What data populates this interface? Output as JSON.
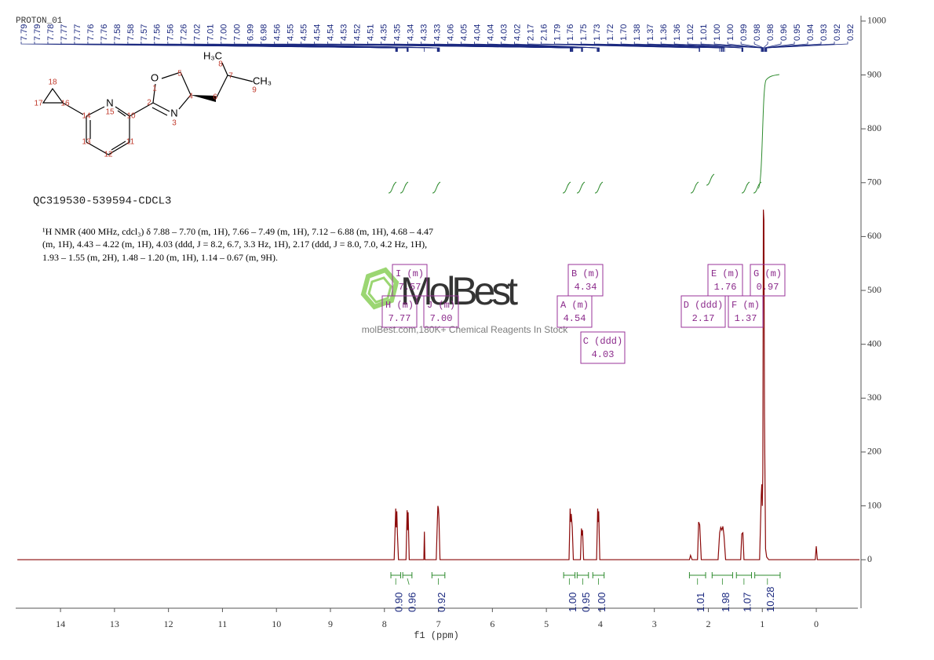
{
  "chart_data": {
    "type": "line",
    "title": "PROTON_01",
    "sample": "QC319530-539594-CDCL3",
    "nmr_text": [
      "¹H NMR (400 MHz, cdcl₃) δ 7.88 – 7.70 (m, 1H), 7.66 – 7.49 (m, 1H), 7.12 – 6.88 (m, 1H), 4.68 – 4.47",
      "(m, 1H), 4.43 – 4.22 (m, 1H), 4.03 (ddd, J = 8.2, 6.7, 3.3 Hz, 1H), 2.17 (ddd, J = 8.0, 7.0, 4.2 Hz, 1H),",
      "1.93 – 1.55 (m, 2H), 1.48 – 1.20 (m, 1H), 1.14 – 0.67 (m, 9H)."
    ],
    "xlabel": "f1 (ppm)",
    "color": "#8b0a0a",
    "x": [
      14.8,
      7.82,
      7.79,
      7.78,
      7.77,
      7.76,
      7.74,
      7.6,
      7.58,
      7.57,
      7.56,
      7.54,
      7.27,
      7.26,
      7.25,
      7.04,
      7.02,
      7.01,
      7.0,
      6.99,
      6.97,
      4.58,
      4.56,
      4.55,
      4.54,
      4.52,
      4.5,
      4.37,
      4.35,
      4.34,
      4.33,
      4.31,
      4.07,
      4.05,
      4.04,
      4.03,
      4.01,
      2.35,
      2.33,
      2.3,
      2.2,
      2.18,
      2.16,
      2.13,
      1.82,
      1.79,
      1.77,
      1.75,
      1.73,
      1.71,
      1.68,
      1.4,
      1.38,
      1.36,
      1.34,
      1.05,
      1.02,
      1.01,
      1.0,
      0.99,
      0.98,
      0.97,
      0.96,
      0.94,
      0.92,
      0.88,
      0.02,
      0.0,
      -0.02,
      -0.8
    ],
    "values": [
      0,
      0,
      95,
      60,
      90,
      50,
      0,
      0,
      92,
      55,
      88,
      0,
      0,
      52,
      0,
      0,
      70,
      100,
      95,
      75,
      0,
      0,
      95,
      70,
      85,
      60,
      0,
      0,
      58,
      45,
      55,
      0,
      0,
      95,
      70,
      90,
      0,
      0,
      8,
      0,
      0,
      70,
      65,
      0,
      0,
      50,
      60,
      55,
      62,
      45,
      0,
      0,
      48,
      50,
      0,
      0,
      120,
      140,
      100,
      160,
      650,
      630,
      270,
      20,
      5,
      0,
      0,
      25,
      0,
      0
    ],
    "xlim": [
      14.83,
      -0.77
    ],
    "xticks": [
      14,
      13,
      12,
      11,
      10,
      9,
      8,
      7,
      6,
      5,
      4,
      3,
      2,
      1,
      0
    ],
    "ylim": [
      -90,
      1010
    ],
    "yticks": [
      0,
      100,
      200,
      300,
      400,
      500,
      600,
      700,
      800,
      900,
      1000
    ],
    "peak_labels": [
      7.79,
      7.79,
      7.78,
      7.77,
      7.77,
      7.76,
      7.76,
      7.58,
      7.58,
      7.57,
      7.56,
      7.56,
      7.26,
      7.02,
      7.01,
      {
        "value": 7,
        "label": "7.00"
      },
      {
        "value": 7,
        "label": "7.00"
      },
      6.99,
      6.98,
      4.56,
      4.55,
      4.55,
      4.54,
      4.54,
      4.53,
      4.52,
      4.51,
      4.35,
      4.35,
      4.34,
      4.33,
      4.33,
      4.06,
      4.05,
      4.04,
      4.04,
      4.03,
      4.02,
      2.17,
      2.16,
      1.79,
      1.76,
      1.75,
      1.73,
      1.72,
      {
        "value": 1.7,
        "label": "1.70"
      },
      1.38,
      1.37,
      1.36,
      1.36,
      1.02,
      1.01,
      {
        "value": 1,
        "label": "1.00"
      },
      {
        "value": 1,
        "label": "1.00"
      },
      0.99,
      0.98,
      0.98,
      0.96,
      0.95,
      0.94,
      0.93,
      0.92,
      0.92
    ],
    "peak_color": "#1c2a80",
    "integrals": {
      "ranges": [
        [
          7.88,
          7.7
        ],
        [
          7.66,
          7.49
        ],
        [
          7.12,
          6.88
        ],
        [
          4.68,
          4.47
        ],
        [
          4.43,
          4.22
        ],
        [
          4.14,
          3.93
        ],
        [
          2.35,
          2.05
        ],
        [
          1.93,
          1.55
        ],
        [
          1.48,
          1.2
        ],
        [
          1.14,
          0.67
        ]
      ],
      "values": [
        0.9,
        0.96,
        0.92,
        1,
        0.95,
        1,
        1.01,
        1.98,
        1.07,
        10.28
      ],
      "value_labels": [
        "0.90",
        "0.96",
        "0.92",
        "1.00",
        "0.95",
        "1.00",
        "1.01",
        "1.98",
        "1.07",
        "10.28"
      ],
      "color": "#2e8b2e"
    },
    "multiplets": [
      {
        "label": "I (m)",
        "shift": "7.57"
      },
      {
        "label": "H (m)",
        "shift": "7.77"
      },
      {
        "label": "J (m)",
        "shift": "7.00"
      },
      {
        "label": "A (m)",
        "shift": "4.54"
      },
      {
        "label": "B (m)",
        "shift": "4.34"
      },
      {
        "label": "C (ddd)",
        "shift": "4.03"
      },
      {
        "label": "D (ddd)",
        "shift": "2.17"
      },
      {
        "label": "E (m)",
        "shift": "1.76"
      },
      {
        "label": "F (m)",
        "shift": "1.37"
      },
      {
        "label": "G (m)",
        "shift": "0.97"
      }
    ],
    "structure": {
      "atoms": [
        "O",
        "N",
        "N",
        "H₃C",
        "CH₃"
      ],
      "numbers": [
        "1",
        "5",
        "2",
        "4",
        "6",
        "3",
        "8",
        "7",
        "9",
        "18",
        "17",
        "16",
        "15",
        "14",
        "10",
        "13",
        "11",
        "12"
      ]
    },
    "watermark": {
      "brand": "MolBest",
      "tagline": "molBest.com,180K+ Chemical Reagents In Stock"
    }
  }
}
